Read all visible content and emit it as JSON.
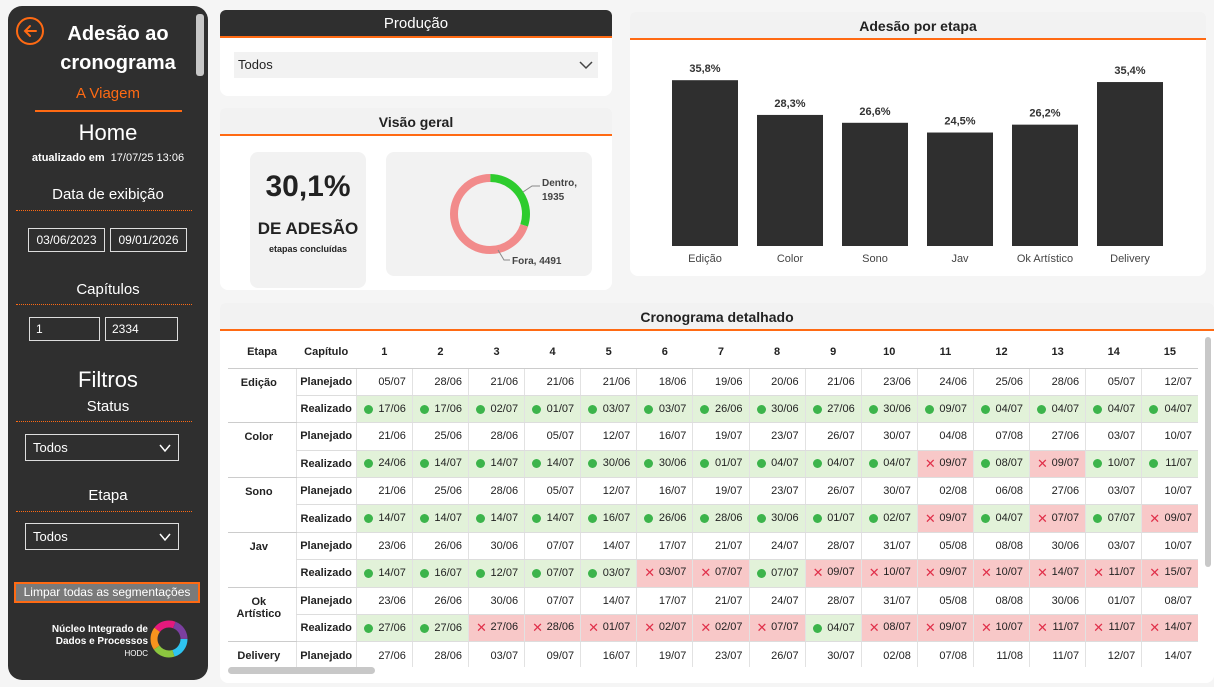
{
  "sidebar": {
    "title": "Adesão ao cronograma",
    "subtitle": "A Viagem",
    "home": "Home",
    "updated_label": "atualizado em",
    "updated_value": "17/07/25 13:06",
    "data_exibicao_label": "Data de exibição",
    "date_start": "03/06/2023",
    "date_end": "09/01/2026",
    "capitulos_label": "Capítulos",
    "cap_start": "1",
    "cap_end": "2334",
    "filtros_label": "Filtros",
    "status_label": "Status",
    "status_value": "Todos",
    "etapa_label": "Etapa",
    "etapa_value": "Todos",
    "clear_label": "Limpar todas as segmentações",
    "org_name": "Núcleo Integrado de Dados e Processos",
    "org_abbr": "HODC"
  },
  "producao": {
    "title": "Produção",
    "value": "Todos"
  },
  "visao": {
    "title": "Visão geral",
    "kpi_value": "30,1%",
    "kpi_label": "DE ADESÃO",
    "kpi_sub": "etapas concluídas",
    "donut": [
      {
        "name": "Dentro",
        "value": 1935,
        "label": "Dentro, 1935",
        "color": "#2ecc2e"
      },
      {
        "name": "Fora",
        "value": 4491,
        "label": "Fora, 4491",
        "color": "#f28b8b"
      }
    ]
  },
  "chart_data": {
    "type": "bar",
    "title": "Adesão por etapa",
    "categories": [
      "Edição",
      "Color",
      "Sono",
      "Jav",
      "Ok Artístico",
      "Delivery"
    ],
    "values": [
      35.8,
      28.3,
      26.6,
      24.5,
      26.2,
      35.4
    ],
    "value_labels": [
      "35,8%",
      "28,3%",
      "26,6%",
      "24,5%",
      "26,2%",
      "35,4%"
    ],
    "ylim": [
      0,
      40
    ],
    "bar_color": "#2f2f2f",
    "grid": false
  },
  "cronograma": {
    "title": "Cronograma detalhado",
    "col_etapa": "Etapa",
    "col_capitulo": "Capítulo",
    "chapters": [
      "1",
      "2",
      "3",
      "4",
      "5",
      "6",
      "7",
      "8",
      "9",
      "10",
      "11",
      "12",
      "13",
      "14",
      "15"
    ],
    "planejado_label": "Planejado",
    "realizado_label": "Realizado",
    "rows": [
      {
        "etapa": "Edição",
        "planejado": [
          "05/07",
          "28/06",
          "21/06",
          "21/06",
          "21/06",
          "18/06",
          "19/06",
          "20/06",
          "21/06",
          "23/06",
          "24/06",
          "25/06",
          "28/06",
          "05/07",
          "12/07"
        ],
        "realizado": [
          "17/06",
          "17/06",
          "02/07",
          "01/07",
          "03/07",
          "03/07",
          "26/06",
          "30/06",
          "27/06",
          "30/06",
          "09/07",
          "04/07",
          "04/07",
          "04/07",
          "04/07"
        ],
        "status": "ggggggggggggggg"
      },
      {
        "etapa": "Color",
        "planejado": [
          "21/06",
          "25/06",
          "28/06",
          "05/07",
          "12/07",
          "16/07",
          "19/07",
          "23/07",
          "26/07",
          "30/07",
          "04/08",
          "07/08",
          "27/06",
          "03/07",
          "10/07"
        ],
        "realizado": [
          "24/06",
          "14/07",
          "14/07",
          "14/07",
          "30/06",
          "30/06",
          "01/07",
          "04/07",
          "04/07",
          "04/07",
          "09/07",
          "08/07",
          "09/07",
          "10/07",
          "11/07"
        ],
        "status": "ggggggggggxgxgg"
      },
      {
        "etapa": "Sono",
        "planejado": [
          "21/06",
          "25/06",
          "28/06",
          "05/07",
          "12/07",
          "16/07",
          "19/07",
          "23/07",
          "26/07",
          "30/07",
          "02/08",
          "06/08",
          "27/06",
          "03/07",
          "10/07"
        ],
        "realizado": [
          "14/07",
          "14/07",
          "14/07",
          "14/07",
          "16/07",
          "26/06",
          "28/06",
          "30/06",
          "01/07",
          "02/07",
          "09/07",
          "04/07",
          "07/07",
          "07/07",
          "09/07"
        ],
        "status": "ggggggggggxgxgx"
      },
      {
        "etapa": "Jav",
        "planejado": [
          "23/06",
          "26/06",
          "30/06",
          "07/07",
          "14/07",
          "17/07",
          "21/07",
          "24/07",
          "28/07",
          "31/07",
          "05/08",
          "08/08",
          "30/06",
          "03/07",
          "10/07"
        ],
        "realizado": [
          "14/07",
          "16/07",
          "12/07",
          "07/07",
          "03/07",
          "03/07",
          "07/07",
          "07/07",
          "09/07",
          "10/07",
          "09/07",
          "10/07",
          "14/07",
          "11/07",
          "15/07"
        ],
        "status": "gggggxxgxxxxxxx"
      },
      {
        "etapa": "Ok Artístico",
        "planejado": [
          "23/06",
          "26/06",
          "30/06",
          "07/07",
          "14/07",
          "17/07",
          "21/07",
          "24/07",
          "28/07",
          "31/07",
          "05/08",
          "08/08",
          "30/06",
          "01/07",
          "08/07"
        ],
        "realizado": [
          "27/06",
          "27/06",
          "27/06",
          "28/06",
          "01/07",
          "02/07",
          "02/07",
          "07/07",
          "04/07",
          "08/07",
          "09/07",
          "10/07",
          "11/07",
          "11/07",
          "14/07"
        ],
        "status": "ggxxxxxxgxxxxxx"
      },
      {
        "etapa": "Delivery",
        "planejado": [
          "27/06",
          "28/06",
          "03/07",
          "09/07",
          "16/07",
          "19/07",
          "23/07",
          "26/07",
          "30/07",
          "02/08",
          "07/08",
          "11/08",
          "11/07",
          "12/07",
          "14/07"
        ],
        "realizado": [],
        "status": ""
      }
    ]
  }
}
